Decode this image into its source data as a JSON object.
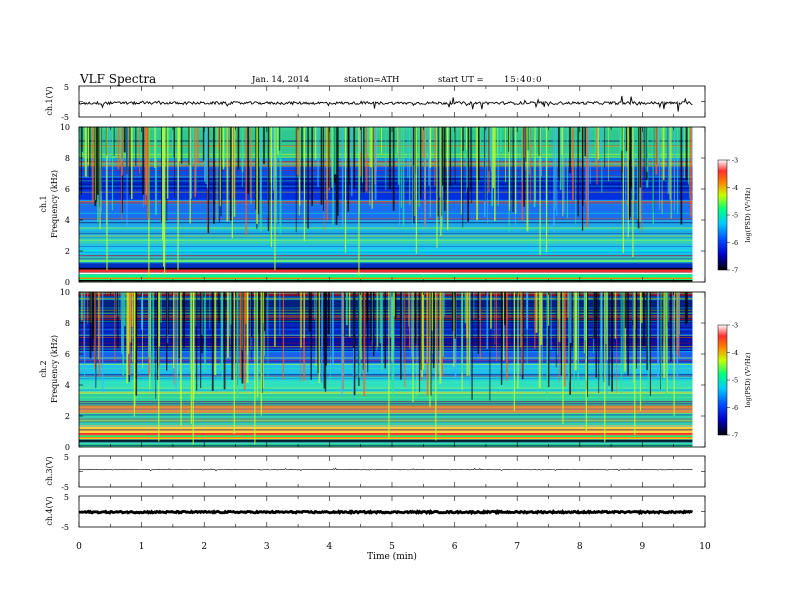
{
  "header": {
    "title": "VLF Spectra",
    "date": "Jan. 14, 2014",
    "station": "station=ATH",
    "start": "start UT =",
    "start_time": "15:40:0"
  },
  "colors": {
    "colorbar": [
      "#000000",
      "#0000c8",
      "#0050ff",
      "#00c8ff",
      "#00ff80",
      "#c8ff00",
      "#ff8000",
      "#ff3030",
      "#ffffff"
    ]
  },
  "chart_data": [
    {
      "type": "line",
      "panel": "ch1-waveform",
      "ylabel": "ch.1(V)",
      "ylim": [
        -5,
        5
      ],
      "y_ticklabels": [
        "5",
        "-5"
      ],
      "xlim": [
        0,
        10
      ],
      "baseline": -0.5,
      "description_values": {
        "noise_amplitude_V": 0.5,
        "spike_amplitude_V": 1.5
      }
    },
    {
      "type": "heatmap",
      "panel": "ch1-spectrogram",
      "ylabel": "ch.1",
      "ylabel2": "Frequency (kHz)",
      "ylim": [
        0,
        10
      ],
      "y_ticks": [
        0,
        2,
        4,
        6,
        8,
        10
      ],
      "xlim": [
        0,
        10
      ],
      "colorbar": {
        "label": "log(PSD) (V²/Hz)",
        "ticks": [
          -3,
          -4,
          -5,
          -6,
          -7
        ],
        "range": [
          -7,
          -3
        ]
      }
    },
    {
      "type": "heatmap",
      "panel": "ch2-spectrogram",
      "ylabel": "ch.2",
      "ylabel2": "Frequency (kHz)",
      "ylim": [
        0,
        10
      ],
      "y_ticks": [
        0,
        2,
        4,
        6,
        8,
        10
      ],
      "xlim": [
        0,
        10
      ],
      "colorbar": {
        "label": "log(PSD) (V²/Hz)",
        "ticks": [
          -3,
          -4,
          -5,
          -6,
          -7
        ],
        "range": [
          -7,
          -3
        ]
      }
    },
    {
      "type": "line",
      "panel": "ch3-waveform",
      "ylabel": "ch.3(V)",
      "ylim": [
        -5,
        5
      ],
      "y_ticklabels": [
        "5",
        "-5"
      ],
      "xlim": [
        0,
        10
      ],
      "baseline": 0.6
    },
    {
      "type": "line",
      "panel": "ch4-waveform",
      "ylabel": "ch.4(V)",
      "ylim": [
        -5,
        5
      ],
      "y_ticklabels": [
        "5",
        "-5"
      ],
      "xlim": [
        0,
        10
      ],
      "baseline": -0.2
    }
  ],
  "xaxis": {
    "label": "Time (min)",
    "ticks": [
      0,
      1,
      2,
      3,
      4,
      5,
      6,
      7,
      8,
      9,
      10
    ],
    "data_end": 9.8
  }
}
